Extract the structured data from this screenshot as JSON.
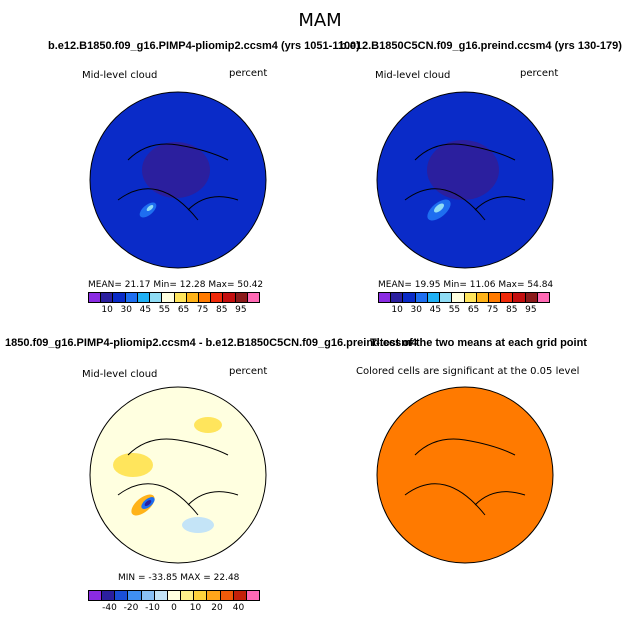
{
  "figure": {
    "title": "MAM"
  },
  "panels": [
    {
      "title": "b.e12.B1850.f09_g16.PIMP4-pliomip2.ccsm4 (yrs 1051-1100)",
      "variable": "Mid-level cloud",
      "units": "percent",
      "stats": "MEAN=   21.17     Min=   12.28    Max=   50.42",
      "colorbar": [
        "#8a2be2",
        "#2b1f9e",
        "#0a2bc8",
        "#1e6ef0",
        "#1fb0f5",
        "#8fdcf5",
        "#ffffe0",
        "#ffe55c",
        "#ffb319",
        "#ff7a00",
        "#f02a0a",
        "#c40f0f",
        "#8b1a1a",
        "#ff69b4"
      ],
      "ticks": [
        "10",
        "30",
        "45",
        "55",
        "65",
        "75",
        "85",
        "95"
      ]
    },
    {
      "title": "b.e12.B1850C5CN.f09_g16.preind.ccsm4 (yrs 130-179)",
      "variable": "Mid-level cloud",
      "units": "percent",
      "stats": "MEAN=   19.95     Min=   11.06    Max=   54.84",
      "colorbar": [
        "#8a2be2",
        "#2b1f9e",
        "#0a2bc8",
        "#1e6ef0",
        "#1fb0f5",
        "#8fdcf5",
        "#ffffe0",
        "#ffe55c",
        "#ffb319",
        "#ff7a00",
        "#f02a0a",
        "#c40f0f",
        "#8b1a1a",
        "#ff69b4"
      ],
      "ticks": [
        "10",
        "30",
        "45",
        "55",
        "65",
        "75",
        "85",
        "95"
      ]
    },
    {
      "title": "1850.f09_g16.PIMP4-pliomip2.ccsm4 - b.e12.B1850C5CN.f09_g16.preind.ccsm4",
      "variable": "Mid-level cloud",
      "units": "percent",
      "stats": "MIN = -33.85  MAX =  22.48",
      "colorbar": [
        "#8a2be2",
        "#2b1f9e",
        "#1a4fd6",
        "#3f8ff2",
        "#88c0f5",
        "#c4e4f7",
        "#ffffe0",
        "#fff08a",
        "#ffd23c",
        "#ffa51a",
        "#f05a0a",
        "#c4200a",
        "#ff69b4"
      ],
      "ticks": [
        "-40",
        "-20",
        "-10",
        "0",
        "10",
        "20",
        "40"
      ]
    },
    {
      "title": "T-test of the two means at each grid point",
      "note": "Colored cells are significant at the 0.05 level"
    }
  ]
}
